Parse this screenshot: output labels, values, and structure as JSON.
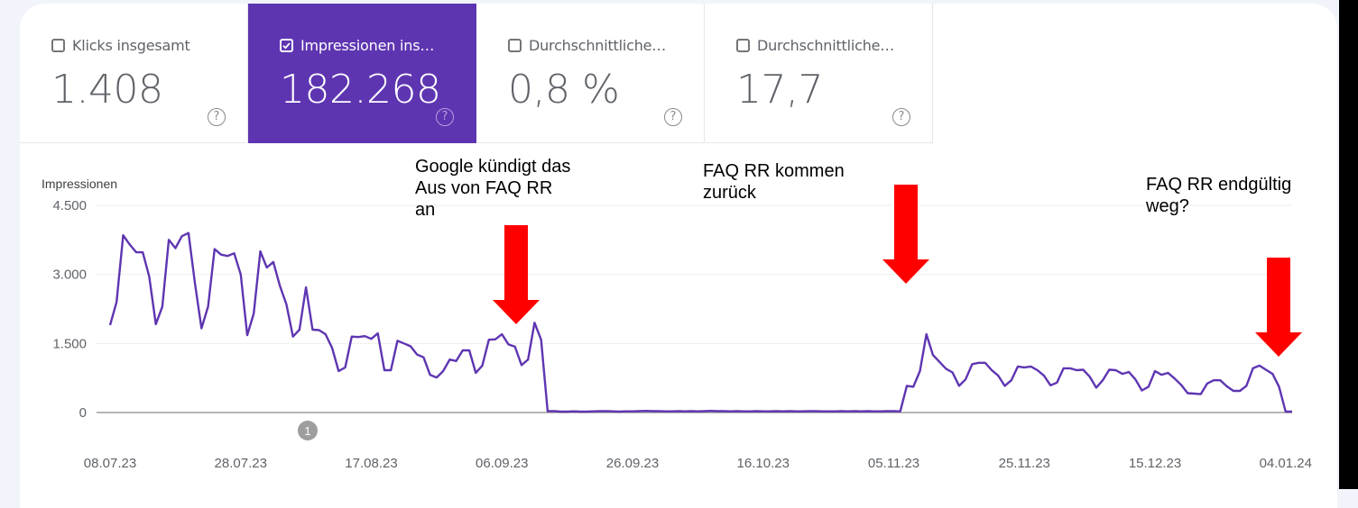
{
  "metrics": [
    {
      "label": "Klicks insgesamt",
      "value": "1.408",
      "checked": false,
      "help_icon": "help-circle-icon"
    },
    {
      "label": "Impressionen ins…",
      "value": "182.268",
      "checked": true,
      "help_icon": "help-circle-icon"
    },
    {
      "label": "Durchschnittliche…",
      "value": "0,8 %",
      "checked": false,
      "help_icon": "help-circle-icon"
    },
    {
      "label": "Durchschnittliche…",
      "value": "17,7",
      "checked": false,
      "help_icon": "help-circle-icon"
    }
  ],
  "colors": {
    "accent": "#5e35b1",
    "line": "#5e35b1",
    "arrow": "#ff0000",
    "background": "#f1f4fb",
    "grid": "#eeeeee",
    "axis_text": "#5f6368"
  },
  "annotations": [
    {
      "text_lines": [
        "Google kündigt das",
        "Aus von FAQ RR",
        "an"
      ]
    },
    {
      "text_lines": [
        "FAQ RR kommen",
        "zurück"
      ]
    },
    {
      "text_lines": [
        "FAQ RR endgültig",
        "weg?"
      ]
    }
  ],
  "event_marker": {
    "label": "1"
  },
  "chart_data": {
    "type": "line",
    "title": "",
    "ylabel": "Impressionen",
    "xlabel": "",
    "ylim": [
      0,
      4500
    ],
    "yticks": [
      0,
      1500,
      3000,
      4500
    ],
    "ytick_labels": [
      "0",
      "1.500",
      "3.000",
      "4.500"
    ],
    "xtick_labels": [
      "08.07.23",
      "28.07.23",
      "17.08.23",
      "06.09.23",
      "26.09.23",
      "16.10.23",
      "05.11.23",
      "25.11.23",
      "15.12.23",
      "04.01.24"
    ],
    "grid": true,
    "legend": null,
    "series": [
      {
        "name": "Impressionen",
        "start_date": "08.07.23",
        "interval": "day",
        "values": [
          1900,
          2400,
          3850,
          3650,
          3480,
          3480,
          2950,
          1920,
          2300,
          3750,
          3570,
          3830,
          3900,
          2800,
          1830,
          2300,
          3550,
          3430,
          3400,
          3460,
          3000,
          1680,
          2150,
          3500,
          3150,
          3270,
          2750,
          2350,
          1650,
          1800,
          2720,
          1800,
          1790,
          1700,
          1400,
          900,
          980,
          1650,
          1640,
          1660,
          1600,
          1720,
          920,
          920,
          1560,
          1500,
          1440,
          1260,
          1200,
          820,
          760,
          900,
          1150,
          1120,
          1350,
          1350,
          860,
          1020,
          1580,
          1590,
          1700,
          1480,
          1430,
          1030,
          1150,
          1950,
          1580,
          30,
          30,
          20,
          20,
          25,
          20,
          20,
          25,
          30,
          30,
          25,
          20,
          25,
          25,
          30,
          35,
          30,
          30,
          25,
          25,
          30,
          25,
          30,
          25,
          30,
          35,
          30,
          30,
          25,
          30,
          25,
          25,
          30,
          25,
          25,
          30,
          25,
          30,
          25,
          25,
          30,
          30,
          25,
          25,
          25,
          30,
          25,
          30,
          25,
          30,
          25,
          25,
          30,
          30,
          25,
          580,
          560,
          900,
          1700,
          1250,
          1100,
          950,
          870,
          580,
          720,
          1050,
          1080,
          1080,
          920,
          800,
          580,
          700,
          1000,
          980,
          1000,
          920,
          800,
          590,
          650,
          960,
          960,
          920,
          930,
          780,
          540,
          700,
          930,
          920,
          840,
          880,
          720,
          480,
          560,
          900,
          820,
          860,
          740,
          600,
          420,
          410,
          400,
          630,
          700,
          700,
          570,
          470,
          470,
          580,
          960,
          1020,
          930,
          840,
          560,
          20,
          20
        ]
      }
    ],
    "annotations": [
      {
        "text": "Google kündigt das Aus von FAQ RR an",
        "near_x": "≈13.09.23",
        "arrow": "down"
      },
      {
        "text": "FAQ RR kommen zurück",
        "near_x": "≈10.11.23",
        "arrow": "down"
      },
      {
        "text": "FAQ RR endgültig weg?",
        "near_x": "≈06.01.24",
        "arrow": "down"
      }
    ]
  }
}
